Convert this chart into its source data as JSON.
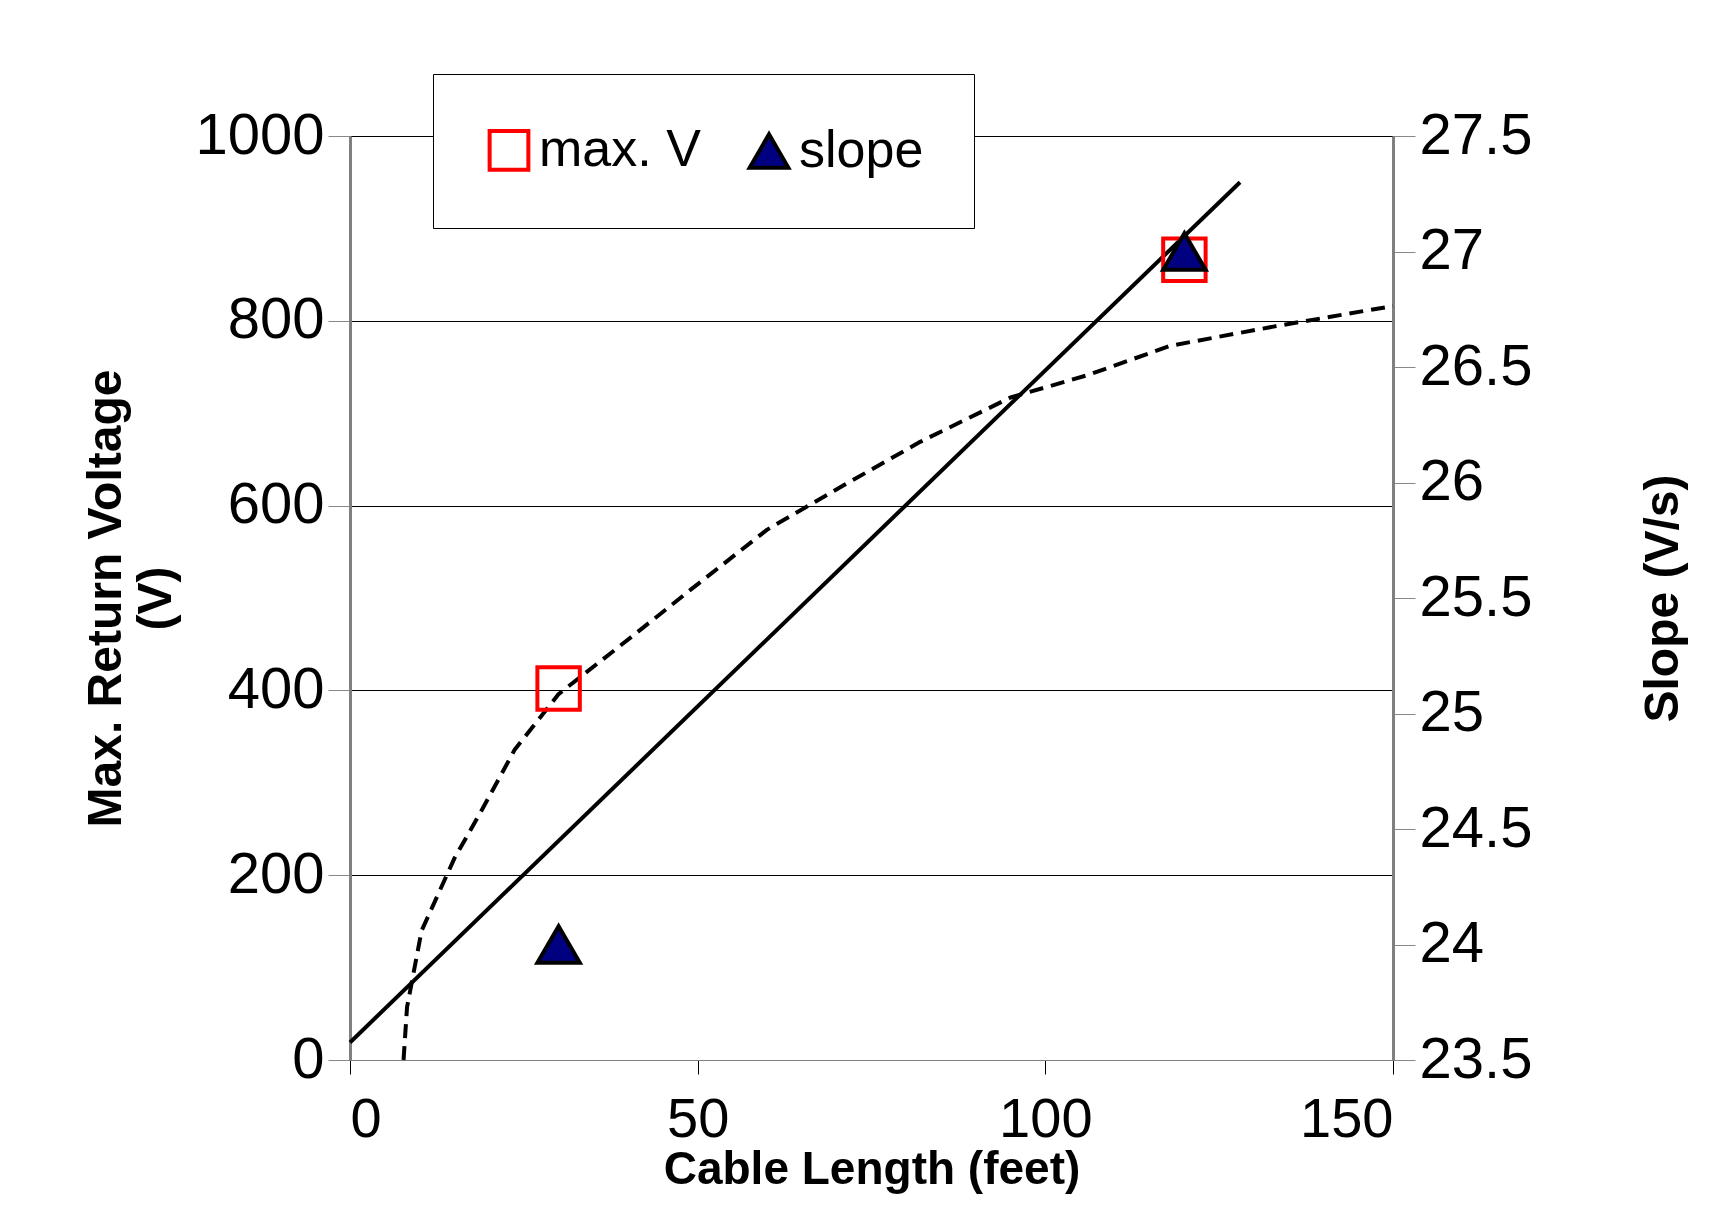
{
  "chart_data": {
    "type": "scatter",
    "xlabel": "Cable Length (feet)",
    "ylabel": "Max. Return Voltage (V)",
    "y2label": "Slope (V/s)",
    "xlim": [
      0,
      150
    ],
    "xticks": [
      0,
      50,
      100,
      150
    ],
    "ylim": [
      0,
      1000
    ],
    "yticks": [
      0,
      200,
      400,
      600,
      800,
      1000
    ],
    "y2lim": [
      23.5,
      27.5
    ],
    "y2ticks": [
      23.5,
      24,
      24.5,
      25,
      25.5,
      26,
      26.5,
      27,
      27.5
    ],
    "grid": "y",
    "legend": "top",
    "series": [
      {
        "type": "line",
        "color": "#000000",
        "line_style": "dashed",
        "x": [
          7.7,
          8.2,
          10.3,
          15,
          19,
          23.7,
          30,
          41,
          49,
          60,
          71,
          82,
          95,
          106,
          118,
          133,
          150
        ],
        "values": [
          0,
          57,
          140,
          218,
          271,
          336,
          396,
          461,
          509,
          574,
          622,
          669,
          717,
          741,
          773,
          794,
          816
        ]
      },
      {
        "type": "line",
        "color": "#000000",
        "line_style": "solid",
        "x": [
          0,
          128
        ],
        "values": [
          19,
          950
        ]
      },
      {
        "name": "max. V",
        "marker": "square",
        "color": "#ff0000",
        "x": [
          30,
          120
        ],
        "values": [
          402,
          866
        ]
      },
      {
        "name": "slope",
        "marker": "triangle",
        "color": "#000080",
        "axis": "y2",
        "x": [
          30,
          120
        ],
        "values": [
          24.0,
          27.0
        ]
      }
    ]
  }
}
